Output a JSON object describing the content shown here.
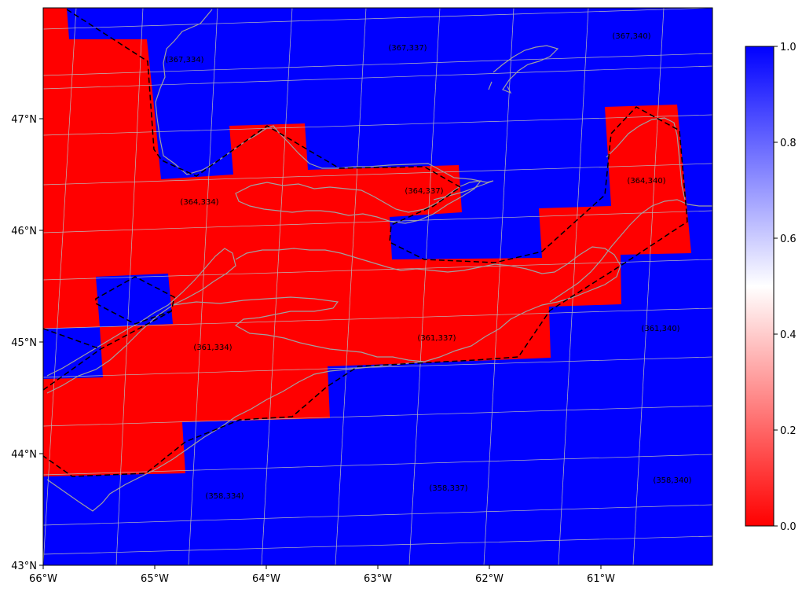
{
  "map": {
    "lon_range": [
      -66.0,
      -60.0
    ],
    "lat_range": [
      43.0,
      48.0
    ],
    "lon_ticks": [
      "66°W",
      "65°W",
      "64°W",
      "63°W",
      "62°W",
      "61°W"
    ],
    "lat_ticks": [
      "43°N",
      "44°N",
      "45°N",
      "46°N",
      "47°N"
    ],
    "colors": {
      "positive": "#0000ff",
      "zero": "#ff0000",
      "coastline": "#a0a0a0",
      "gridline": "#bbbbbb",
      "boundary": "#000000"
    }
  },
  "colorbar": {
    "range": [
      0.0,
      1.0
    ],
    "tick_labels": [
      "0.0",
      "0.2",
      "0.4",
      "0.6",
      "0.8",
      "1.0"
    ],
    "colormap": "bwr_r"
  },
  "tiles": {
    "labels": [
      "(367,334)",
      "(367,337)",
      "(367,340)",
      "(364,334)",
      "(364,337)",
      "(364,340)",
      "(361,334)",
      "(361,337)",
      "(361,340)",
      "(358,334)",
      "(358,337)",
      "(358,340)"
    ]
  },
  "chart_data": {
    "type": "heatmap",
    "title": "",
    "xlabel": "",
    "ylabel": "",
    "value_range": [
      0,
      1
    ],
    "legend": "colorbar right",
    "values_note": "binary mask: red cells = 0, blue cells = 1"
  }
}
